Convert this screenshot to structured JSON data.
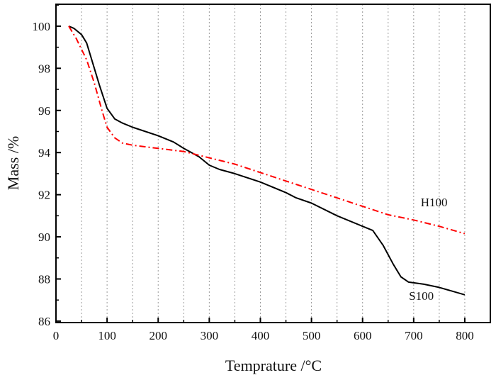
{
  "chart_data": {
    "type": "line",
    "title": "",
    "xlabel": "Temprature /°C",
    "ylabel": "Mass /%",
    "xlim": [
      0,
      850
    ],
    "ylim": [
      85.93,
      101.04
    ],
    "xticks": [
      0,
      100,
      200,
      300,
      400,
      500,
      600,
      700,
      800
    ],
    "yticks": [
      86,
      88,
      90,
      92,
      94,
      96,
      98,
      100
    ],
    "grid": "vertical dotted every 50",
    "series": [
      {
        "name": "S100",
        "color": "#000000",
        "style": "solid",
        "x": [
          25,
          35,
          50,
          60,
          75,
          85,
          100,
          115,
          130,
          150,
          200,
          230,
          250,
          280,
          300,
          320,
          350,
          400,
          450,
          470,
          500,
          550,
          600,
          620,
          640,
          660,
          675,
          690,
          720,
          750,
          800
        ],
        "y": [
          100,
          99.9,
          99.6,
          99.2,
          98,
          97.2,
          96.1,
          95.6,
          95.4,
          95.2,
          94.8,
          94.5,
          94.2,
          93.8,
          93.4,
          93.2,
          93,
          92.6,
          92.1,
          91.85,
          91.6,
          91,
          90.5,
          90.3,
          89.6,
          88.7,
          88.1,
          87.85,
          87.75,
          87.6,
          87.25
        ]
      },
      {
        "name": "H100",
        "color": "#ff0000",
        "style": "dash-dot",
        "x": [
          25,
          40,
          60,
          75,
          90,
          100,
          115,
          130,
          150,
          200,
          250,
          300,
          350,
          400,
          450,
          500,
          550,
          600,
          650,
          700,
          750,
          800
        ],
        "y": [
          100,
          99.4,
          98.4,
          97.3,
          96,
          95.2,
          94.7,
          94.45,
          94.35,
          94.2,
          94.05,
          93.75,
          93.45,
          93.05,
          92.65,
          92.25,
          91.85,
          91.45,
          91.05,
          90.8,
          90.5,
          90.15
        ]
      }
    ],
    "annotations": [
      {
        "text": "H100",
        "x": 740,
        "y": 91.45
      },
      {
        "text": "S100",
        "x": 715,
        "y": 87.0
      }
    ]
  }
}
